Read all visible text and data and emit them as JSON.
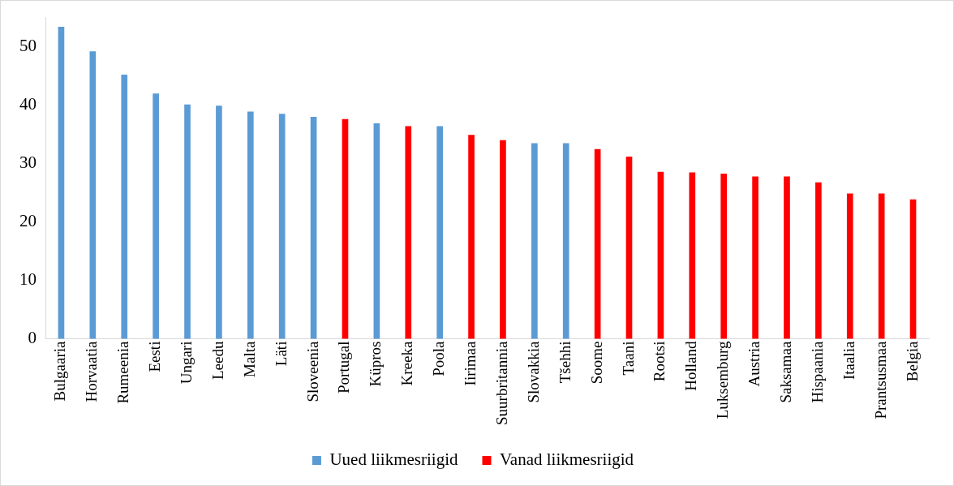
{
  "chart_data": {
    "type": "bar",
    "categories": [
      "Bulgaaria",
      "Horvaatia",
      "Rumeenia",
      "Eesti",
      "Ungari",
      "Leedu",
      "Malta",
      "Läti",
      "Sloveenia",
      "Portugal",
      "Küpros",
      "Kreeka",
      "Poola",
      "Iirimaa",
      "Suurbritannia",
      "Slovakkia",
      "Tšehhi",
      "Soome",
      "Taani",
      "Rootsi",
      "Holland",
      "Luksemburg",
      "Austria",
      "Saksamaa",
      "Hispaania",
      "Itaalia",
      "Prantsusmaa",
      "Belgia"
    ],
    "series": [
      {
        "name": "Uued liikmesriigid",
        "color": "#5b9bd5",
        "values": [
          53.3,
          49.1,
          45.1,
          41.9,
          40.0,
          39.8,
          38.8,
          38.4,
          37.9,
          null,
          36.8,
          null,
          36.3,
          null,
          null,
          33.4,
          33.4,
          null,
          null,
          null,
          null,
          null,
          null,
          null,
          null,
          null,
          null,
          null
        ]
      },
      {
        "name": "Vanad liikmesriigid",
        "color": "#ff0000",
        "values": [
          null,
          null,
          null,
          null,
          null,
          null,
          null,
          null,
          null,
          37.5,
          null,
          36.3,
          null,
          34.8,
          33.9,
          null,
          null,
          32.4,
          31.1,
          28.5,
          28.4,
          28.2,
          27.7,
          27.7,
          26.7,
          24.8,
          24.8,
          23.8
        ]
      }
    ],
    "ylim": [
      0,
      55
    ],
    "yticks": [
      0,
      10,
      20,
      30,
      40,
      50
    ],
    "grid": false,
    "legend": "bottom"
  }
}
